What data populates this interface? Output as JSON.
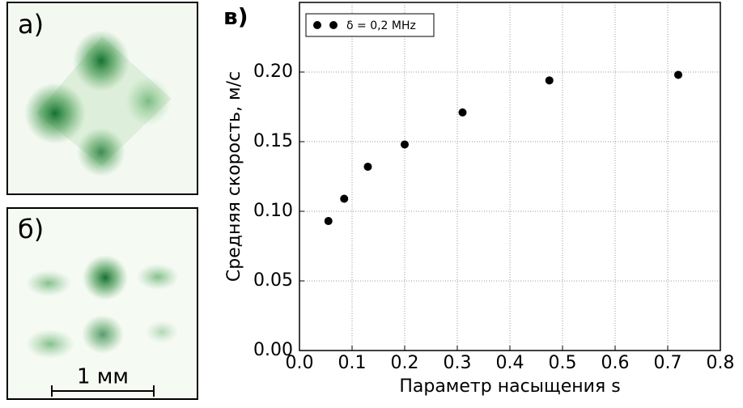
{
  "panels": {
    "a_label": "а)",
    "b_label": "б)",
    "scale_bar": "1 мм"
  },
  "chart_data": {
    "type": "scatter",
    "panel_label": "в)",
    "xlabel": "Параметр насыщения s",
    "ylabel": "Средняя скорость, м/с",
    "series": [
      {
        "name": "δ = 0,2 MHz",
        "color": "#000000",
        "x": [
          0.055,
          0.085,
          0.13,
          0.2,
          0.31,
          0.475,
          0.72
        ],
        "values": [
          0.093,
          0.109,
          0.132,
          0.148,
          0.171,
          0.194,
          0.198
        ]
      }
    ],
    "xlim": [
      0,
      0.8
    ],
    "ylim": [
      0,
      0.25
    ],
    "xticks": [
      {
        "value": 0,
        "label": "0.0"
      },
      {
        "value": 0.1,
        "label": "0.1"
      },
      {
        "value": 0.2,
        "label": "0.2"
      },
      {
        "value": 0.3,
        "label": "0.3"
      },
      {
        "value": 0.4,
        "label": "0.4"
      },
      {
        "value": 0.5,
        "label": "0.5"
      },
      {
        "value": 0.6,
        "label": "0.6"
      },
      {
        "value": 0.7,
        "label": "0.7"
      },
      {
        "value": 0.8,
        "label": "0.8"
      }
    ],
    "yticks": [
      {
        "value": 0,
        "label": "0.00"
      },
      {
        "value": 0.05,
        "label": "0.05"
      },
      {
        "value": 0.1,
        "label": "0.10"
      },
      {
        "value": 0.15,
        "label": "0.15"
      },
      {
        "value": 0.2,
        "label": "0.20"
      }
    ],
    "grid": true,
    "legend": "upper left"
  }
}
